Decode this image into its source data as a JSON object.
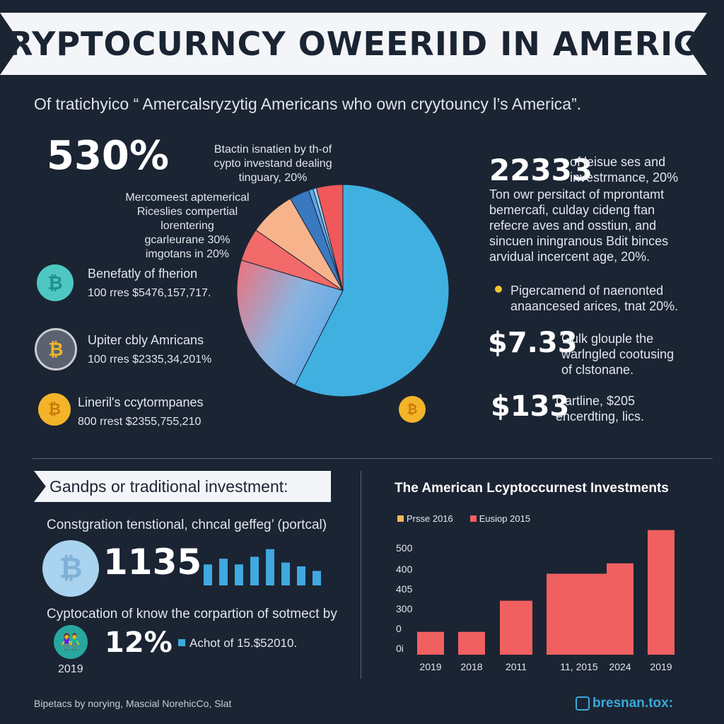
{
  "title": "CRYPTOCURNCY OWEERIID IN AMERICA",
  "subtitle": "Of tratichyico “ Amercalsryzytig Americans who own cryytouncy l’s America”.",
  "left": {
    "stat_value": "530%",
    "callout_top": [
      "Btactin isnatien by th-of",
      "cypto investand dealing",
      "tinguary, 20%"
    ],
    "callout_mid": [
      "Mercomeest aptemerical",
      "Riceslies compertial",
      "lorentering",
      "gcarleurane 30%",
      "imgotans in 20%"
    ],
    "items": [
      {
        "icon": "bitcoin-icon",
        "label": "Benefatly of fherion",
        "value": "100 rres $5476,157,717."
      },
      {
        "icon": "bitcoin-icon",
        "label": "Upiter cbly Amricans",
        "value": "100 rres $2335,34,201%"
      },
      {
        "icon": "bitcoin-icon",
        "label": "Lineril's ccytormpanes",
        "value": "800 rrest $2355,755,210"
      }
    ]
  },
  "right": {
    "stat1_value": "22333",
    "stat1_text": [
      "of leisue ses and",
      "investrmance, 20%"
    ],
    "paragraph": [
      "Ton owr persitact of mprontamt",
      "bemercafi, culday cideng ftan",
      "refecre aves and osstiun, and",
      "sincuen iningranous Bdit binces",
      "arvidual incercent age, 20%."
    ],
    "bullet": [
      "Pigercamend of naenonted",
      "anaancesed arices, tnat 20%."
    ],
    "stat2_value": "$7.33",
    "stat2_text": [
      "Gulk glouple the",
      "warlngled cootusing",
      "of clstonane."
    ],
    "stat3_value": "$133",
    "stat3_text": [
      "Cartline, $205",
      "encerdting, lics."
    ]
  },
  "bottom_left": {
    "tag": "Gandps or traditional investment:",
    "line1": "Constgration tenstional, chncal geffeg’ (portcal)",
    "stat_value": "1135",
    "mini_bars": [
      0.55,
      0.7,
      0.55,
      0.75,
      0.95,
      0.6,
      0.5,
      0.38
    ],
    "line2": "Cyptocation of know the corpartion of sotmect by",
    "stat2_value": "12%",
    "legend_note": "Achot of 15.$52010.",
    "year": "2019"
  },
  "chart_data": [
    {
      "type": "pie",
      "title": "",
      "slices": [
        {
          "label": "",
          "value": 57,
          "color": "#3fb0e0"
        },
        {
          "label": "",
          "value": 22,
          "color": "#c8a0c0"
        },
        {
          "label": "",
          "value": 5,
          "color": "#f26a6a"
        },
        {
          "label": "",
          "value": 7,
          "color": "#f7b48c"
        },
        {
          "label": "",
          "value": 3,
          "color": "#3a78c0"
        },
        {
          "label": "",
          "value": 0.7,
          "color": "#5ea8e8"
        },
        {
          "label": "",
          "value": 0.5,
          "color": "#9ad0f0"
        },
        {
          "label": "",
          "value": 4,
          "color": "#f0585a"
        }
      ]
    },
    {
      "type": "bar",
      "title": "The American Lcyptoccurnest Investments",
      "legend": [
        {
          "name": "Prsse 2016",
          "color": "#f7b95a"
        },
        {
          "name": "Eusiop 2015",
          "color": "#f06060"
        }
      ],
      "categories": [
        "2019",
        "2018",
        "2011",
        "11, 2015",
        "2024",
        "2019"
      ],
      "values": [
        55,
        55,
        130,
        195,
        220,
        300
      ],
      "y_ticks": [
        "500",
        "400",
        "405",
        "300",
        "0",
        "0i"
      ],
      "ylim": [
        0,
        320
      ]
    }
  ],
  "footer": {
    "left": "Bipetacs by norying, Mascial NorehicCo, Slat",
    "right": "bresnan.tox:"
  }
}
